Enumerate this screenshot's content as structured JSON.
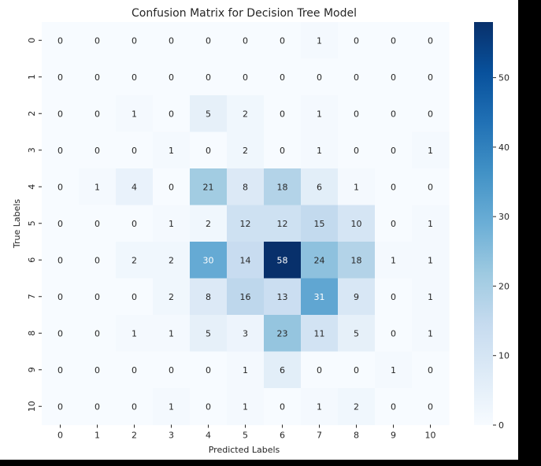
{
  "chart_data": {
    "type": "heatmap",
    "title": "Confusion Matrix for Decision Tree Model",
    "xlabel": "Predicted Labels",
    "ylabel": "True Labels",
    "x_categories": [
      "0",
      "1",
      "2",
      "3",
      "4",
      "5",
      "6",
      "7",
      "8",
      "9",
      "10"
    ],
    "y_categories": [
      "0",
      "1",
      "2",
      "3",
      "4",
      "5",
      "6",
      "7",
      "8",
      "9",
      "10"
    ],
    "values": [
      [
        0,
        0,
        0,
        0,
        0,
        0,
        0,
        1,
        0,
        0,
        0
      ],
      [
        0,
        0,
        0,
        0,
        0,
        0,
        0,
        0,
        0,
        0,
        0
      ],
      [
        0,
        0,
        1,
        0,
        5,
        2,
        0,
        1,
        0,
        0,
        0
      ],
      [
        0,
        0,
        0,
        1,
        0,
        2,
        0,
        1,
        0,
        0,
        1
      ],
      [
        0,
        1,
        4,
        0,
        21,
        8,
        18,
        6,
        1,
        0,
        0
      ],
      [
        0,
        0,
        0,
        1,
        2,
        12,
        12,
        15,
        10,
        0,
        1
      ],
      [
        0,
        0,
        2,
        2,
        30,
        14,
        58,
        24,
        18,
        1,
        1
      ],
      [
        0,
        0,
        0,
        2,
        8,
        16,
        13,
        31,
        9,
        0,
        1
      ],
      [
        0,
        0,
        1,
        1,
        5,
        3,
        23,
        11,
        5,
        0,
        1
      ],
      [
        0,
        0,
        0,
        0,
        0,
        1,
        6,
        0,
        0,
        1,
        0
      ],
      [
        0,
        0,
        0,
        1,
        0,
        1,
        0,
        1,
        2,
        0,
        0
      ]
    ],
    "colormap": "Blues",
    "value_range": [
      0,
      58
    ],
    "colorbar_ticks": [
      0,
      10,
      20,
      30,
      40,
      50
    ],
    "colors": {
      "low": "#f7fbff",
      "high": "#08306b",
      "text_dark": "#262626",
      "text_light": "#ffffff"
    }
  }
}
